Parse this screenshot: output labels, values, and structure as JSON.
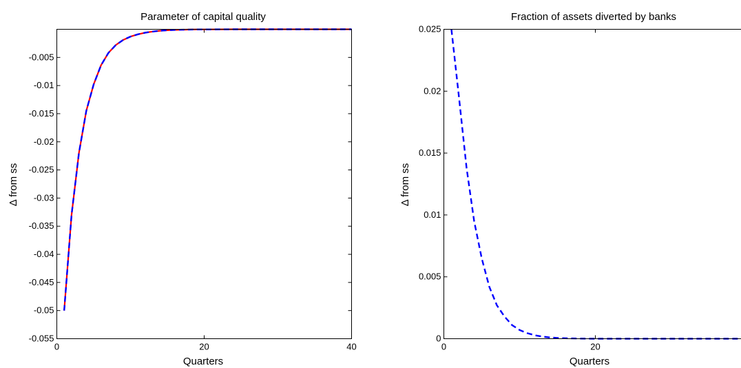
{
  "chart_data": [
    {
      "type": "line",
      "title": "Parameter of capital quality",
      "xlabel": "Quarters",
      "ylabel": "Δ from ss",
      "xlim": [
        0,
        40
      ],
      "ylim": [
        -0.055,
        0
      ],
      "xticks": [
        0,
        20,
        40
      ],
      "xtick_labels": [
        "0",
        "20",
        "40"
      ],
      "yticks": [
        -0.055,
        -0.05,
        -0.045,
        -0.04,
        -0.035,
        -0.03,
        -0.025,
        -0.02,
        -0.015,
        -0.01,
        -0.005
      ],
      "ytick_labels": [
        "-0.055",
        "-0.05",
        "-0.045",
        "-0.04",
        "-0.035",
        "-0.03",
        "-0.025",
        "-0.02",
        "-0.015",
        "-0.01",
        "-0.005"
      ],
      "grid": false,
      "series": [
        {
          "color": "#ff0000",
          "style": "solid",
          "x": [
            1,
            2,
            3,
            4,
            5,
            6,
            7,
            8,
            9,
            10,
            11,
            12,
            13,
            14,
            15,
            16,
            17,
            18,
            19,
            20,
            22,
            24,
            26,
            28,
            30,
            32,
            34,
            36,
            38,
            40
          ],
          "y": [
            -0.05,
            -0.033,
            -0.022,
            -0.0145,
            -0.0098,
            -0.0064,
            -0.0042,
            -0.0028,
            -0.0019,
            -0.0013,
            -0.0009,
            -0.0006,
            -0.0004,
            -0.00026,
            -0.00017,
            -0.00011,
            -7e-05,
            -5e-05,
            -3e-05,
            -2e-05,
            -1e-05,
            0,
            0,
            0,
            0,
            0,
            0,
            0,
            0,
            0
          ]
        },
        {
          "color": "#0000ff",
          "style": "dashed",
          "x": [
            1,
            2,
            3,
            4,
            5,
            6,
            7,
            8,
            9,
            10,
            11,
            12,
            13,
            14,
            15,
            16,
            17,
            18,
            19,
            20,
            22,
            24,
            26,
            28,
            30,
            32,
            34,
            36,
            38,
            40
          ],
          "y": [
            -0.05,
            -0.033,
            -0.022,
            -0.0145,
            -0.0098,
            -0.0064,
            -0.0042,
            -0.0028,
            -0.0019,
            -0.0013,
            -0.0009,
            -0.0006,
            -0.0004,
            -0.00026,
            -0.00017,
            -0.00011,
            -7e-05,
            -5e-05,
            -3e-05,
            -2e-05,
            -1e-05,
            0,
            0,
            0,
            0,
            0,
            0,
            0,
            0,
            0
          ]
        }
      ]
    },
    {
      "type": "line",
      "title": "Fraction of assets diverted by banks",
      "xlabel": "Quarters",
      "ylabel": "Δ from ss",
      "xlim": [
        0,
        40
      ],
      "ylim": [
        0,
        0.025
      ],
      "xticks": [
        0,
        20,
        40
      ],
      "xtick_labels": [
        "0",
        "20",
        "40"
      ],
      "yticks": [
        0,
        0.005,
        0.01,
        0.015,
        0.02,
        0.025
      ],
      "ytick_labels": [
        "0",
        "0.005",
        "0.01",
        "0.015",
        "0.02",
        "0.025"
      ],
      "grid": false,
      "series": [
        {
          "color": "#0000ff",
          "style": "dashed",
          "x": [
            1,
            2,
            3,
            4,
            5,
            6,
            7,
            8,
            9,
            10,
            11,
            12,
            13,
            14,
            15,
            16,
            17,
            18,
            20,
            22,
            24,
            26,
            28,
            30,
            32,
            34,
            36,
            38,
            40
          ],
          "y": [
            0.025,
            0.0195,
            0.0138,
            0.0095,
            0.0065,
            0.0042,
            0.0027,
            0.0018,
            0.0011,
            0.0007,
            0.00045,
            0.00028,
            0.00017,
            0.0001,
            6e-05,
            4e-05,
            2e-05,
            1e-05,
            0,
            0,
            0,
            0,
            0,
            0,
            0,
            0,
            0,
            0,
            0
          ]
        }
      ]
    }
  ]
}
